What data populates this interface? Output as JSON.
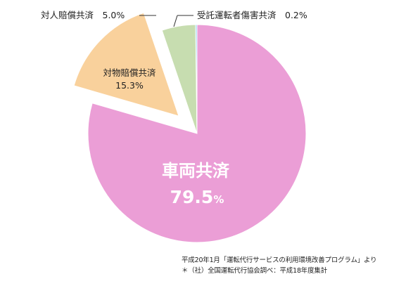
{
  "chart_data": {
    "type": "pie",
    "categories": [
      "車両共済",
      "対物賠償共済",
      "対人賠償共済",
      "受託運転者傷害共済"
    ],
    "values": [
      79.5,
      15.3,
      5.0,
      0.2
    ],
    "unit": "%",
    "labels": {
      "main_name": "車両共済",
      "main_value": "79.5",
      "main_unit": "%",
      "property_name": "対物賠償共済",
      "property_value": "15.3%",
      "personal": "対人賠償共済　5.0%",
      "driver": "受託運転者傷害共済　0.2%"
    },
    "colors": [
      "#eb9ed6",
      "#f9d19c",
      "#c7ddb0",
      "#7fcff0"
    ],
    "exploded": [
      "対物賠償共済"
    ],
    "legend": "none"
  },
  "source": {
    "line1": "平成20年1月「運転代行サービスの利用環境改善プログラム」より",
    "line2": "＊（社）全国運転代行協会調べ：平成18年度集計"
  }
}
